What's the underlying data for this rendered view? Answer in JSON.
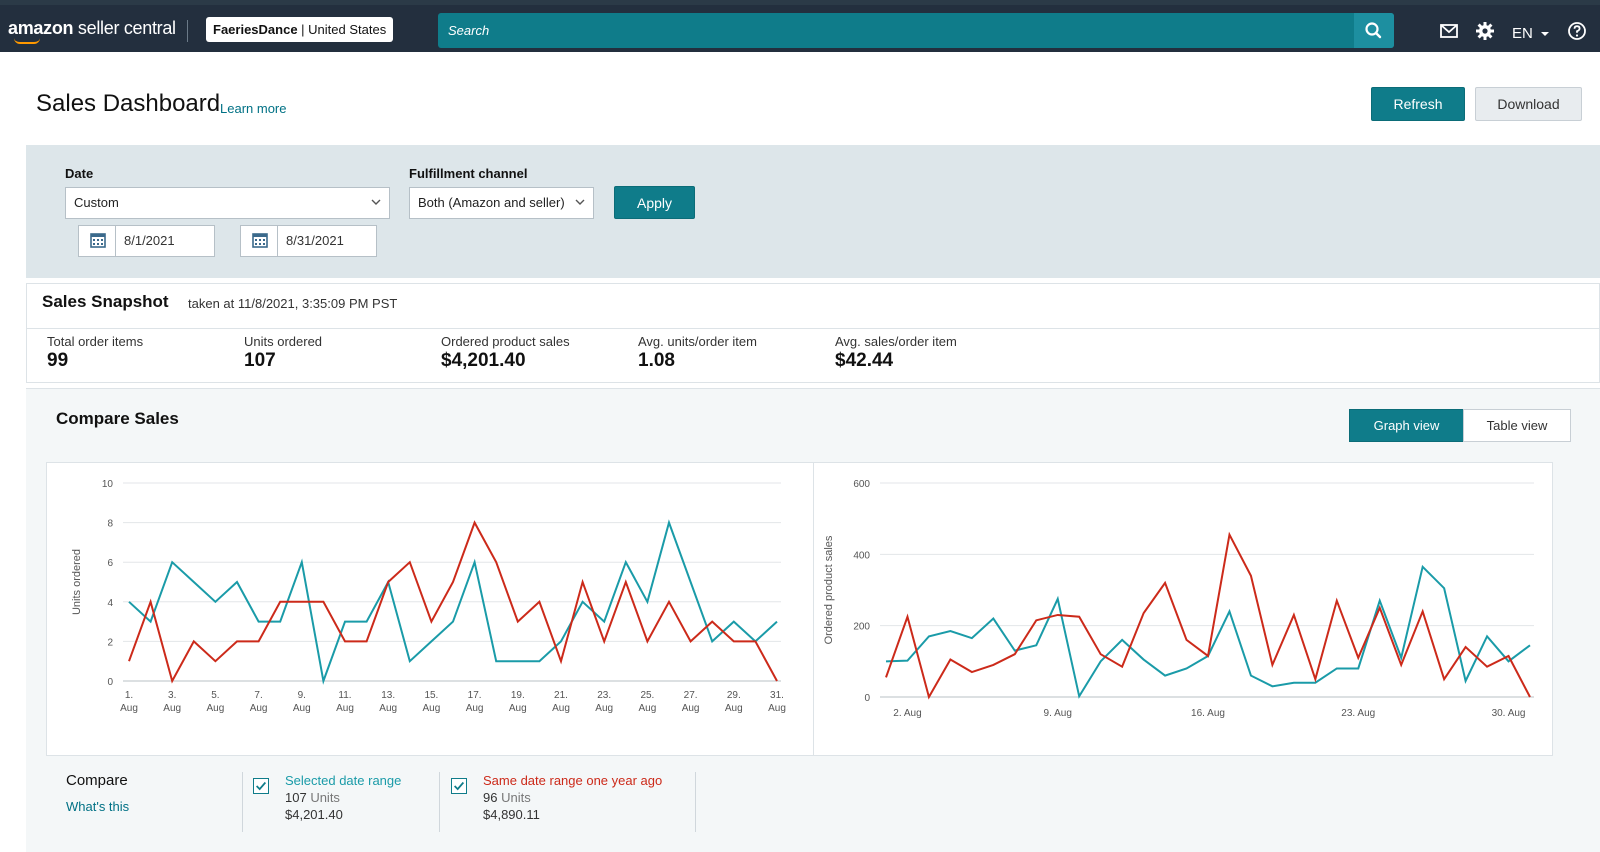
{
  "nav": {
    "logo_brand": "amazon",
    "logo_suffix": " seller central",
    "account_name": "FaeriesDance",
    "account_region": " | United States",
    "search_placeholder": "Search",
    "language": "EN"
  },
  "header": {
    "title": "Sales Dashboard",
    "learn_more": "Learn more",
    "refresh": "Refresh",
    "download": "Download"
  },
  "filters": {
    "date_label": "Date",
    "date_value": "Custom",
    "start_date": "8/1/2021",
    "end_date": "8/31/2021",
    "channel_label": "Fulfillment channel",
    "channel_value": "Both (Amazon and seller)",
    "apply": "Apply"
  },
  "snapshot": {
    "title": "Sales Snapshot",
    "taken_at": "taken at 11/8/2021, 3:35:09 PM PST",
    "metrics": [
      {
        "label": "Total order items",
        "value": "99"
      },
      {
        "label": "Units ordered",
        "value": "107"
      },
      {
        "label": "Ordered product sales",
        "value": "$4,201.40"
      },
      {
        "label": "Avg. units/order item",
        "value": "1.08"
      },
      {
        "label": "Avg. sales/order item",
        "value": "$42.44"
      }
    ]
  },
  "compare": {
    "title": "Compare Sales",
    "graph_view": "Graph view",
    "table_view": "Table view",
    "compare_label": "Compare",
    "whats_this": "What's this",
    "legend": [
      {
        "title": "Selected date range",
        "units": "107",
        "units_suffix": " Units",
        "sales": "$4,201.40",
        "color": "#1a9ba8"
      },
      {
        "title": "Same date range one year ago",
        "units": "96",
        "units_suffix": " Units",
        "sales": "$4,890.11",
        "color": "#cc2a1a"
      }
    ]
  },
  "colors": {
    "accent": "#0f7c8a",
    "nav": "#232f3e",
    "current": "#1a9ba8",
    "previous": "#cc2a1a"
  },
  "chart_data": [
    {
      "type": "line",
      "title": "",
      "xlabel": "",
      "ylabel": "Units ordered",
      "ylim": [
        0,
        10
      ],
      "yticks": [
        0,
        2,
        4,
        6,
        8,
        10
      ],
      "x": [
        1,
        2,
        3,
        4,
        5,
        6,
        7,
        8,
        9,
        10,
        11,
        12,
        13,
        14,
        15,
        16,
        17,
        18,
        19,
        20,
        21,
        22,
        23,
        24,
        25,
        26,
        27,
        28,
        29,
        30,
        31
      ],
      "xtick_labels": [
        [
          "1.",
          "Aug"
        ],
        [
          "3.",
          "Aug"
        ],
        [
          "5.",
          "Aug"
        ],
        [
          "7.",
          "Aug"
        ],
        [
          "9.",
          "Aug"
        ],
        [
          "11.",
          "Aug"
        ],
        [
          "13.",
          "Aug"
        ],
        [
          "15.",
          "Aug"
        ],
        [
          "17.",
          "Aug"
        ],
        [
          "19.",
          "Aug"
        ],
        [
          "21.",
          "Aug"
        ],
        [
          "23.",
          "Aug"
        ],
        [
          "25.",
          "Aug"
        ],
        [
          "27.",
          "Aug"
        ],
        [
          "29.",
          "Aug"
        ],
        [
          "31.",
          "Aug"
        ]
      ],
      "xtick_positions": [
        1,
        3,
        5,
        7,
        9,
        11,
        13,
        15,
        17,
        19,
        21,
        23,
        25,
        27,
        29,
        31
      ],
      "xlim": [
        1,
        31
      ],
      "grid": "horizontal",
      "series": [
        {
          "name": "Selected date range",
          "values": [
            4,
            3,
            6,
            5,
            4,
            5,
            3,
            3,
            6,
            0,
            3,
            3,
            5,
            1,
            2,
            3,
            6,
            1,
            1,
            1,
            2,
            4,
            3,
            6,
            4,
            8,
            5,
            2,
            3,
            2,
            3
          ]
        },
        {
          "name": "Same date range one year ago",
          "values": [
            1,
            4,
            0,
            2,
            1,
            2,
            2,
            4,
            4,
            4,
            2,
            2,
            5,
            6,
            3,
            5,
            8,
            6,
            3,
            4,
            1,
            5,
            2,
            5,
            2,
            4,
            2,
            3,
            2,
            2,
            0
          ]
        }
      ]
    },
    {
      "type": "line",
      "title": "",
      "xlabel": "",
      "ylabel": "Ordered product sales",
      "ylim": [
        0,
        600
      ],
      "yticks": [
        0,
        200,
        400,
        600
      ],
      "x": [
        1,
        2,
        3,
        4,
        5,
        6,
        7,
        8,
        9,
        10,
        11,
        12,
        13,
        14,
        15,
        16,
        17,
        18,
        19,
        20,
        21,
        22,
        23,
        24,
        25,
        26,
        27,
        28,
        29,
        30,
        31
      ],
      "xtick_labels": [
        "2. Aug",
        "9. Aug",
        "16. Aug",
        "23. Aug",
        "30. Aug"
      ],
      "xtick_positions": [
        2,
        9,
        16,
        23,
        30
      ],
      "xlim": [
        1,
        31
      ],
      "grid": "horizontal",
      "series": [
        {
          "name": "Selected date range",
          "values": [
            100,
            102,
            170,
            185,
            165,
            220,
            130,
            145,
            275,
            2,
            100,
            160,
            105,
            60,
            80,
            115,
            240,
            60,
            30,
            40,
            40,
            80,
            80,
            270,
            110,
            365,
            305,
            45,
            170,
            100,
            145
          ]
        },
        {
          "name": "Same date range one year ago",
          "values": [
            55,
            225,
            0,
            105,
            70,
            90,
            120,
            215,
            230,
            225,
            120,
            85,
            235,
            320,
            160,
            115,
            455,
            340,
            90,
            230,
            50,
            270,
            110,
            250,
            90,
            240,
            50,
            140,
            85,
            115,
            0
          ]
        }
      ]
    }
  ]
}
